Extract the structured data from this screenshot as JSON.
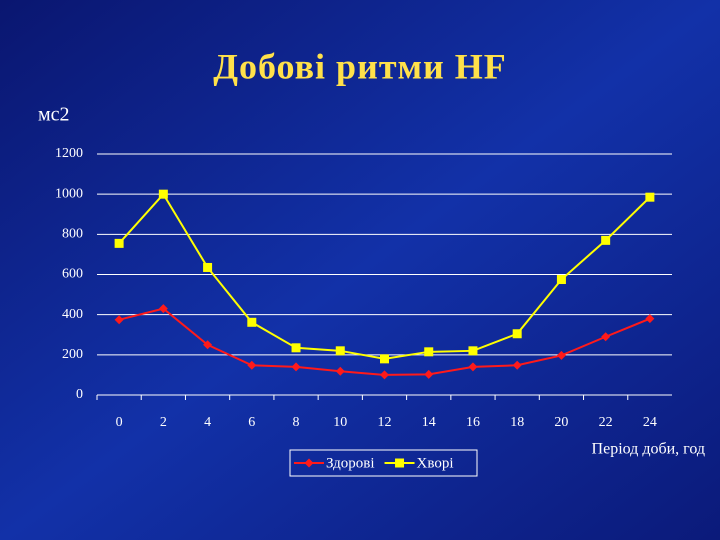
{
  "chart_data": {
    "type": "line",
    "title": "Добові ритми HF",
    "y_label": "мс2",
    "x_label": "Період доби, год",
    "categories": [
      "0",
      "2",
      "4",
      "6",
      "8",
      "10",
      "12",
      "14",
      "16",
      "18",
      "20",
      "22",
      "24"
    ],
    "series": [
      {
        "name": "Здорові",
        "color": "#ff1a1a",
        "marker": "diamond",
        "values": [
          375,
          430,
          250,
          148,
          140,
          118,
          100,
          103,
          140,
          148,
          197,
          290,
          380
        ]
      },
      {
        "name": "Хворі",
        "color": "#ffff00",
        "marker": "square",
        "values": [
          755,
          1000,
          635,
          362,
          235,
          220,
          180,
          215,
          220,
          305,
          575,
          770,
          985
        ]
      }
    ],
    "ylim": [
      0,
      1200
    ],
    "yticks": [
      0,
      200,
      400,
      600,
      800,
      1000,
      1200
    ],
    "grid": true
  }
}
